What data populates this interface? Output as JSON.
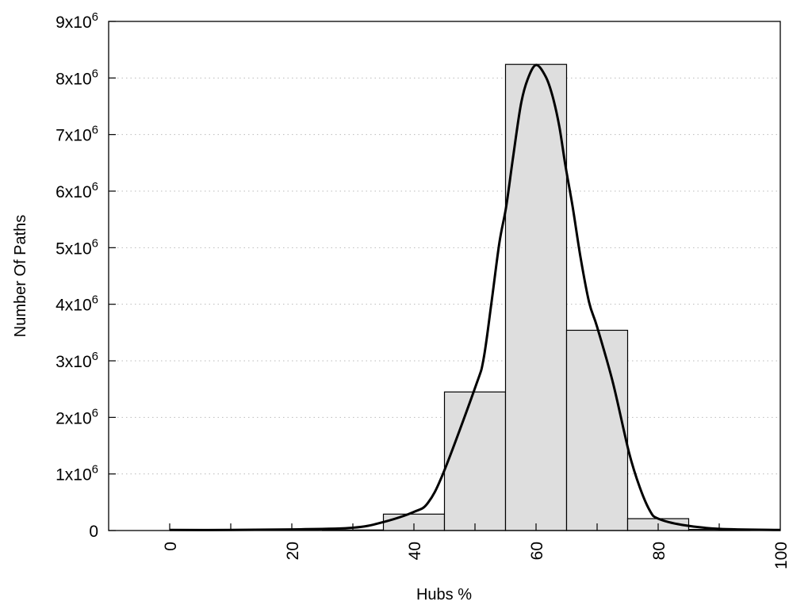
{
  "chart_data": {
    "type": "bar",
    "title": "",
    "xlabel": "Hubs %",
    "ylabel": "Number Of Paths",
    "xlim": [
      -10,
      100
    ],
    "ylim": [
      0,
      9000000
    ],
    "x_ticks": [
      0,
      20,
      40,
      60,
      80,
      100
    ],
    "x_minor_ticks": [
      0,
      10,
      20,
      30,
      40,
      50,
      60,
      70,
      80,
      90
    ],
    "y_ticks": [
      {
        "value": 0,
        "label": "0",
        "exp": ""
      },
      {
        "value": 1000000,
        "label": "1x10",
        "exp": "6"
      },
      {
        "value": 2000000,
        "label": "2x10",
        "exp": "6"
      },
      {
        "value": 3000000,
        "label": "3x10",
        "exp": "6"
      },
      {
        "value": 4000000,
        "label": "4x10",
        "exp": "6"
      },
      {
        "value": 5000000,
        "label": "5x10",
        "exp": "6"
      },
      {
        "value": 6000000,
        "label": "6x10",
        "exp": "6"
      },
      {
        "value": 7000000,
        "label": "7x10",
        "exp": "6"
      },
      {
        "value": 8000000,
        "label": "8x10",
        "exp": "6"
      },
      {
        "value": 9000000,
        "label": "9x10",
        "exp": "6"
      }
    ],
    "grid": "horizontal dotted",
    "bar_width": 10,
    "bars": {
      "x": [
        30,
        40,
        50,
        60,
        70,
        80,
        90
      ],
      "values": [
        10000,
        290000,
        2450000,
        8240000,
        3540000,
        210000,
        20000
      ],
      "color": "#dedede"
    },
    "curve": {
      "x": [
        0,
        10,
        20,
        30,
        35,
        40,
        42.3,
        44.9,
        50.1,
        51.4,
        52.7,
        54.0,
        55.1,
        56.2,
        57.5,
        58.6,
        60.0,
        61.6,
        62.7,
        63.8,
        64.8,
        66.0,
        67.3,
        68.7,
        70.0,
        72.6,
        75.2,
        77.0,
        78.7,
        80.0,
        83.9,
        90,
        100
      ],
      "values": [
        10000,
        10000,
        20000,
        50000,
        150000,
        330000,
        490000,
        1040000,
        2550000,
        3030000,
        4030000,
        5090000,
        5720000,
        6570000,
        7520000,
        7970000,
        8230000,
        8020000,
        7680000,
        7150000,
        6460000,
        5720000,
        4820000,
        4030000,
        3600000,
        2610000,
        1390000,
        760000,
        340000,
        210000,
        100000,
        30000,
        10000
      ],
      "color": "#000000"
    }
  }
}
